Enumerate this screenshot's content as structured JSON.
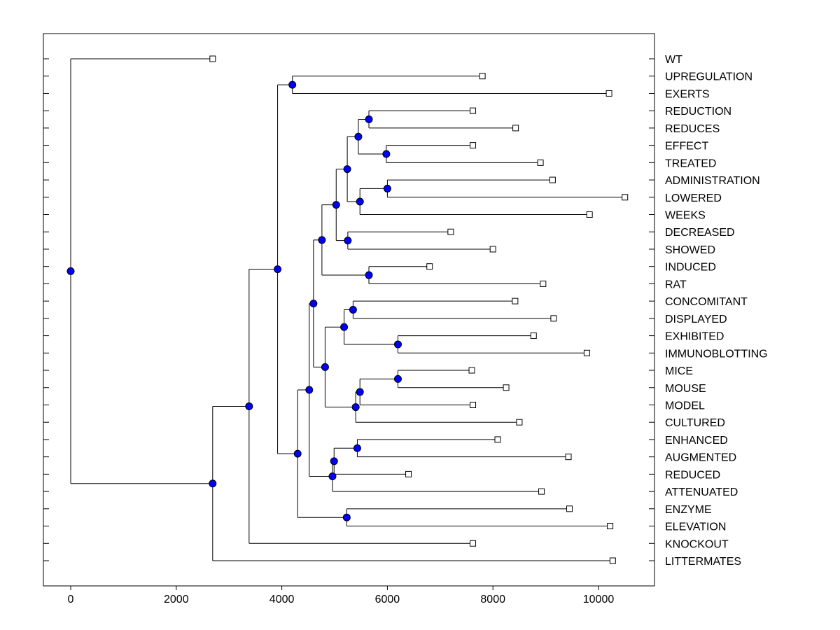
{
  "chart_data": {
    "type": "dendrogram",
    "title": "",
    "xlabel": "",
    "ylabel": "",
    "xlim": [
      -500,
      11000
    ],
    "xticks": [
      0,
      2000,
      4000,
      6000,
      8000,
      10000
    ],
    "xtick_labels": [
      "0",
      "2000",
      "4000",
      "6000",
      "8000",
      "10000"
    ],
    "grid": false,
    "colors": {
      "node": "#0000ff",
      "line": "#000000",
      "leaf_marker": "#ffffff"
    },
    "leaves": [
      {
        "label": "WT",
        "value": 2690
      },
      {
        "label": "UPREGULATION",
        "value": 7800
      },
      {
        "label": "EXERTS",
        "value": 10200
      },
      {
        "label": "REDUCTION",
        "value": 7620
      },
      {
        "label": "REDUCES",
        "value": 8430
      },
      {
        "label": "EFFECT",
        "value": 7620
      },
      {
        "label": "TREATED",
        "value": 8900
      },
      {
        "label": "ADMINISTRATION",
        "value": 9130
      },
      {
        "label": "LOWERED",
        "value": 10500
      },
      {
        "label": "WEEKS",
        "value": 9830
      },
      {
        "label": "DECREASED",
        "value": 7200
      },
      {
        "label": "SHOWED",
        "value": 8000
      },
      {
        "label": "INDUCED",
        "value": 6800
      },
      {
        "label": "RAT",
        "value": 8950
      },
      {
        "label": "CONCOMITANT",
        "value": 8420
      },
      {
        "label": "DISPLAYED",
        "value": 9150
      },
      {
        "label": "EXHIBITED",
        "value": 8770
      },
      {
        "label": "IMMUNOBLOTTING",
        "value": 9780
      },
      {
        "label": "MICE",
        "value": 7600
      },
      {
        "label": "MOUSE",
        "value": 8250
      },
      {
        "label": "MODEL",
        "value": 7620
      },
      {
        "label": "CULTURED",
        "value": 8500
      },
      {
        "label": "ENHANCED",
        "value": 8090
      },
      {
        "label": "AUGMENTED",
        "value": 9430
      },
      {
        "label": "REDUCED",
        "value": 6400
      },
      {
        "label": "ATTENUATED",
        "value": 8920
      },
      {
        "label": "ENZYME",
        "value": 9450
      },
      {
        "label": "ELEVATION",
        "value": 10220
      },
      {
        "label": "KNOCKOUT",
        "value": 7620
      },
      {
        "label": "LITTERMATES",
        "value": 10270
      }
    ],
    "merges": [
      {
        "id": "n_up_ex",
        "value": 4200,
        "children": [
          1,
          2
        ]
      },
      {
        "id": "n_reduction",
        "value": 5650,
        "children": [
          3,
          4
        ]
      },
      {
        "id": "n_effect",
        "value": 5980,
        "children": [
          5,
          6
        ]
      },
      {
        "id": "n_red_eff",
        "value": 5450,
        "children": [
          "n_reduction",
          "n_effect"
        ]
      },
      {
        "id": "n_admin",
        "value": 6000,
        "children": [
          7,
          8
        ]
      },
      {
        "id": "n_admin_weeks",
        "value": 5480,
        "children": [
          "n_admin",
          9
        ]
      },
      {
        "id": "n_upper1",
        "value": 5240,
        "children": [
          "n_red_eff",
          "n_admin_weeks"
        ]
      },
      {
        "id": "n_decreased",
        "value": 5250,
        "children": [
          10,
          11
        ]
      },
      {
        "id": "n_upper2",
        "value": 5030,
        "children": [
          "n_upper1",
          "n_decreased"
        ]
      },
      {
        "id": "n_induced",
        "value": 5650,
        "children": [
          12,
          13
        ]
      },
      {
        "id": "n_upper3",
        "value": 4760,
        "children": [
          "n_upper2",
          "n_induced"
        ]
      },
      {
        "id": "n_concomitant",
        "value": 5350,
        "children": [
          14,
          15
        ]
      },
      {
        "id": "n_exhibited",
        "value": 6200,
        "children": [
          16,
          17
        ]
      },
      {
        "id": "n_conc_exh",
        "value": 5180,
        "children": [
          "n_concomitant",
          "n_exhibited"
        ]
      },
      {
        "id": "n_mice",
        "value": 6200,
        "children": [
          18,
          19
        ]
      },
      {
        "id": "n_mice_model",
        "value": 5480,
        "children": [
          "n_mice",
          20
        ]
      },
      {
        "id": "n_mice_cult",
        "value": 5400,
        "children": [
          "n_mice_model",
          21
        ]
      },
      {
        "id": "n_mid",
        "value": 4820,
        "children": [
          "n_conc_exh",
          "n_mice_cult"
        ]
      },
      {
        "id": "n_upper4",
        "value": 4600,
        "children": [
          "n_upper3",
          "n_mid"
        ]
      },
      {
        "id": "n_enhanced",
        "value": 5430,
        "children": [
          22,
          23
        ]
      },
      {
        "id": "n_enh_red",
        "value": 4990,
        "children": [
          "n_enhanced",
          24
        ]
      },
      {
        "id": "n_enh_att",
        "value": 4960,
        "children": [
          "n_enh_red",
          25
        ]
      },
      {
        "id": "n_big1",
        "value": 4520,
        "children": [
          "n_upper4",
          "n_enh_att"
        ]
      },
      {
        "id": "n_enzyme",
        "value": 5230,
        "children": [
          26,
          27
        ]
      },
      {
        "id": "n_big2",
        "value": 4300,
        "children": [
          "n_big1",
          "n_enzyme"
        ]
      },
      {
        "id": "n_big3",
        "value": 3920,
        "children": [
          "n_up_ex",
          "n_big2"
        ]
      },
      {
        "id": "n_big4",
        "value": 3380,
        "children": [
          "n_big3",
          28
        ]
      },
      {
        "id": "n_big5",
        "value": 2690,
        "children": [
          "n_big4",
          29
        ]
      },
      {
        "id": "n_root",
        "value": 0,
        "children": [
          0,
          "n_big5"
        ]
      }
    ]
  }
}
